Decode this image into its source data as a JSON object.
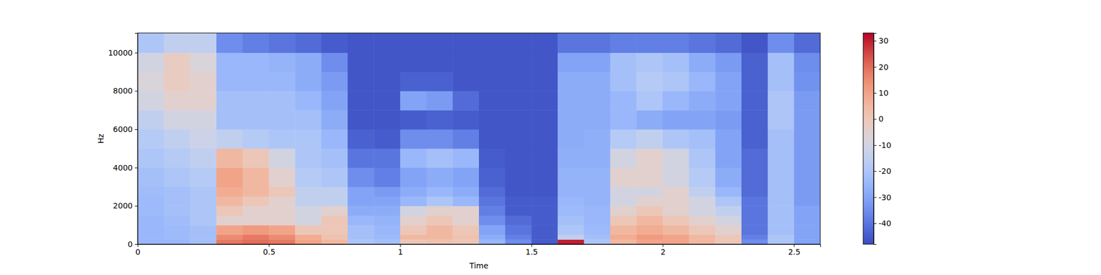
{
  "chart_data": {
    "type": "heatmap",
    "x_label": "Time",
    "y_label": "Hz",
    "xlim": [
      0,
      2.6
    ],
    "ylim": [
      0,
      11025
    ],
    "xticks": [
      0,
      0.5,
      1,
      1.5,
      2,
      2.5
    ],
    "yticks": [
      0,
      2000,
      4000,
      6000,
      8000,
      10000
    ],
    "x_edges": [
      0,
      0.1,
      0.2,
      0.3,
      0.4,
      0.5,
      0.6,
      0.7,
      0.8,
      0.9,
      1,
      1.1,
      1.2,
      1.3,
      1.4,
      1.5,
      1.6,
      1.7,
      1.8,
      1.9,
      2,
      2.1,
      2.2,
      2.3,
      2.4,
      2.5,
      2.6
    ],
    "y_edges": [
      0,
      250,
      500,
      1000,
      1500,
      2000,
      2500,
      3000,
      4000,
      5000,
      6000,
      7000,
      8000,
      9000,
      10000,
      11025
    ],
    "cells": [
      [
        -25,
        -25,
        -22,
        18,
        20,
        18,
        10,
        5,
        -20,
        -22,
        0,
        2,
        0,
        -25,
        -35,
        -45,
        30,
        -20,
        5,
        10,
        10,
        5,
        0,
        -35,
        -20,
        -30
      ],
      [
        -25,
        -24,
        -22,
        15,
        18,
        15,
        8,
        2,
        -22,
        -24,
        5,
        5,
        2,
        -28,
        -38,
        -45,
        -15,
        -22,
        8,
        12,
        10,
        5,
        0,
        -38,
        -20,
        -30
      ],
      [
        -25,
        -24,
        -22,
        10,
        12,
        10,
        0,
        0,
        -22,
        -25,
        0,
        5,
        0,
        -30,
        -40,
        -45,
        -20,
        -24,
        5,
        8,
        5,
        0,
        -5,
        -40,
        -22,
        -30
      ],
      [
        -25,
        -23,
        -20,
        -5,
        -5,
        -5,
        -10,
        0,
        -25,
        -26,
        -5,
        0,
        -5,
        -35,
        -42,
        -45,
        -22,
        -25,
        0,
        5,
        0,
        -5,
        -10,
        -40,
        -22,
        -30
      ],
      [
        -24,
        -22,
        -20,
        0,
        -5,
        -5,
        -10,
        -5,
        -28,
        -28,
        -10,
        -5,
        -5,
        -38,
        -45,
        -45,
        -24,
        -25,
        -5,
        0,
        -5,
        -10,
        -15,
        -40,
        -22,
        -30
      ],
      [
        -24,
        -22,
        -20,
        5,
        0,
        -5,
        -15,
        -15,
        -30,
        -30,
        -25,
        -20,
        -25,
        -40,
        -45,
        -45,
        -25,
        -26,
        -10,
        -5,
        -5,
        -10,
        -20,
        -40,
        -22,
        -32
      ],
      [
        -23,
        -22,
        -20,
        8,
        5,
        0,
        -15,
        -15,
        -30,
        -32,
        -28,
        -25,
        -28,
        -42,
        -46,
        -46,
        -26,
        -26,
        -10,
        -10,
        -5,
        -15,
        -25,
        -42,
        -22,
        -32
      ],
      [
        -22,
        -20,
        -18,
        10,
        5,
        -5,
        -18,
        -20,
        -35,
        -38,
        -30,
        -28,
        -30,
        -44,
        -46,
        -46,
        -26,
        -26,
        -5,
        -5,
        -10,
        -18,
        -28,
        -42,
        -22,
        -32
      ],
      [
        -20,
        -18,
        -15,
        5,
        0,
        -10,
        -20,
        -22,
        -40,
        -40,
        -25,
        -22,
        -25,
        -45,
        -46,
        -46,
        -27,
        -27,
        -10,
        -5,
        -10,
        -20,
        -30,
        -42,
        -22,
        -32
      ],
      [
        -18,
        -15,
        -12,
        -15,
        -18,
        -20,
        -20,
        -25,
        -44,
        -45,
        -35,
        -35,
        -38,
        -46,
        -46,
        -46,
        -28,
        -27,
        -18,
        -15,
        -20,
        -22,
        -30,
        -44,
        -22,
        -32
      ],
      [
        -15,
        -10,
        -10,
        -22,
        -22,
        -22,
        -22,
        -28,
        -46,
        -46,
        -45,
        -44,
        -45,
        -46,
        -46,
        -46,
        -28,
        -28,
        -25,
        -28,
        -30,
        -30,
        -32,
        -44,
        -20,
        -32
      ],
      [
        -10,
        -5,
        -5,
        -22,
        -22,
        -22,
        -25,
        -30,
        -46,
        -46,
        -30,
        -32,
        -42,
        -46,
        -46,
        -46,
        -28,
        -28,
        -25,
        -20,
        -25,
        -28,
        -30,
        -44,
        -20,
        -32
      ],
      [
        -8,
        -2,
        -5,
        -25,
        -25,
        -25,
        -28,
        -32,
        -46,
        -46,
        -44,
        -44,
        -46,
        -46,
        -46,
        -46,
        -28,
        -28,
        -22,
        -18,
        -20,
        -25,
        -30,
        -44,
        -22,
        -34
      ],
      [
        -10,
        -2,
        -8,
        -25,
        -25,
        -26,
        -28,
        -35,
        -46,
        -46,
        -46,
        -46,
        -46,
        -46,
        -46,
        -46,
        -30,
        -30,
        -22,
        -20,
        -22,
        -28,
        -32,
        -44,
        -22,
        -35
      ],
      [
        -20,
        -15,
        -15,
        -35,
        -38,
        -40,
        -42,
        -45,
        -46,
        -46,
        -46,
        -46,
        -46,
        -46,
        -46,
        -46,
        -40,
        -40,
        -38,
        -38,
        -38,
        -40,
        -42,
        -46,
        -35,
        -42
      ]
    ],
    "colorbar": {
      "range": [
        -48,
        33
      ],
      "ticks": [
        -40,
        -30,
        -20,
        -10,
        0,
        10,
        20,
        30
      ]
    }
  }
}
